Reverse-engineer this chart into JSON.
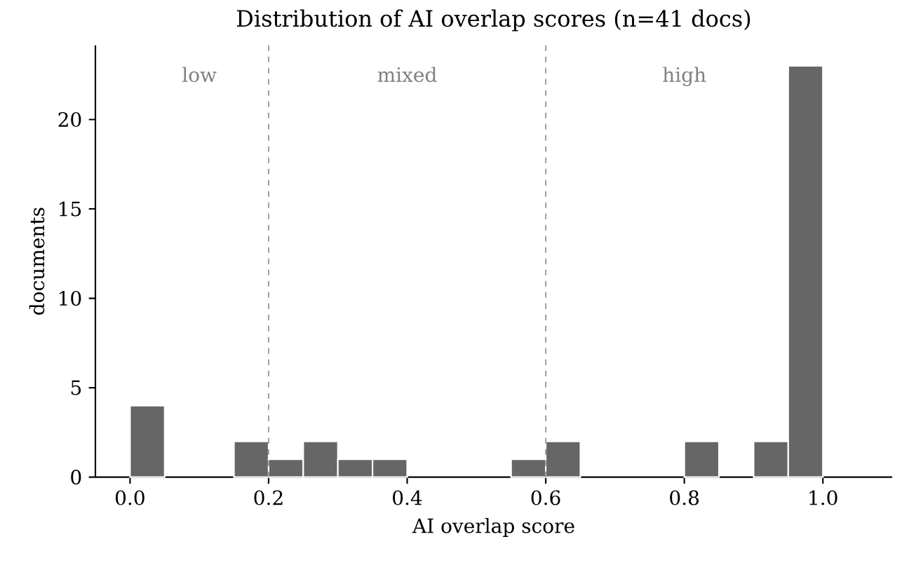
{
  "chart_data": {
    "type": "histogram",
    "title": "Distribution of AI overlap scores (n=41 docs)",
    "xlabel": "AI overlap score",
    "ylabel": "documents",
    "bins": [
      0,
      0.05,
      0.1,
      0.15,
      0.2,
      0.25,
      0.3,
      0.35,
      0.4,
      0.45,
      0.5,
      0.55,
      0.6,
      0.65,
      0.7,
      0.75,
      0.8,
      0.85,
      0.9,
      0.95,
      1.0
    ],
    "values": [
      4,
      0,
      0,
      2,
      1,
      2,
      1,
      1,
      0,
      0,
      0,
      1,
      2,
      0,
      0,
      0,
      2,
      0,
      2,
      23
    ],
    "color": "#666666",
    "xlim": [
      -0.05,
      1.1
    ],
    "ylim": [
      0,
      24.15
    ],
    "xticks": [
      {
        "value": 0,
        "label": "0.0"
      },
      0.2,
      0.4,
      0.6,
      0.8,
      {
        "value": 1,
        "label": "1.0"
      }
    ],
    "yticks": [
      0,
      5,
      10,
      15,
      20
    ],
    "ref_lines": [
      {
        "axis": "x",
        "value": 0.2,
        "color": "#888888",
        "line_style": "dashed"
      },
      {
        "axis": "x",
        "value": 0.6,
        "color": "#888888",
        "line_style": "dashed"
      }
    ],
    "annotations": [
      "low",
      "mixed",
      "high"
    ],
    "grid": false
  }
}
